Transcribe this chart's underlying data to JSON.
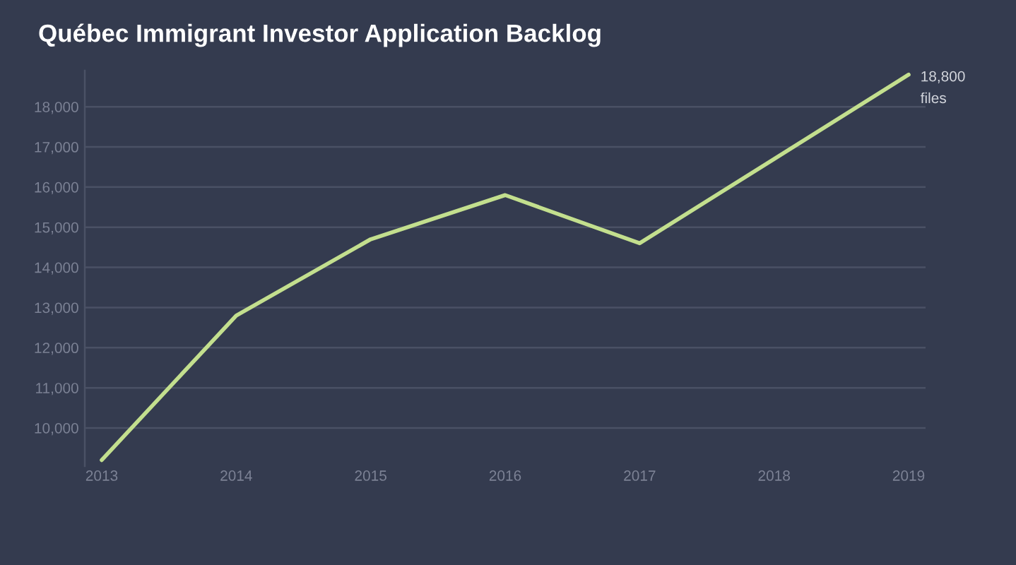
{
  "chart_data": {
    "type": "line",
    "title": "Québec Immigrant Investor Application Backlog",
    "categories": [
      "2013",
      "2014",
      "2015",
      "2016",
      "2017",
      "2018",
      "2019"
    ],
    "series": [
      {
        "color": "#c3df8e",
        "values": [
          9200,
          12800,
          14700,
          15800,
          14600,
          16700,
          18800
        ]
      }
    ],
    "ylim": [
      9050,
      18900
    ],
    "yticks": [
      {
        "value": 10000,
        "label": "10,000"
      },
      {
        "value": 11000,
        "label": "11,000"
      },
      {
        "value": 12000,
        "label": "12,000"
      },
      {
        "value": 13000,
        "label": "13,000"
      },
      {
        "value": 14000,
        "label": "14,000"
      },
      {
        "value": 15000,
        "label": "15,000"
      },
      {
        "value": 16000,
        "label": "16,000"
      },
      {
        "value": 17000,
        "label": "17,000"
      },
      {
        "value": 18000,
        "label": "18,000"
      }
    ],
    "grid": "y",
    "line_style": "solid",
    "annotations": [
      {
        "text": "18,800\nfiles",
        "x": "2019",
        "y": 18800
      }
    ]
  }
}
